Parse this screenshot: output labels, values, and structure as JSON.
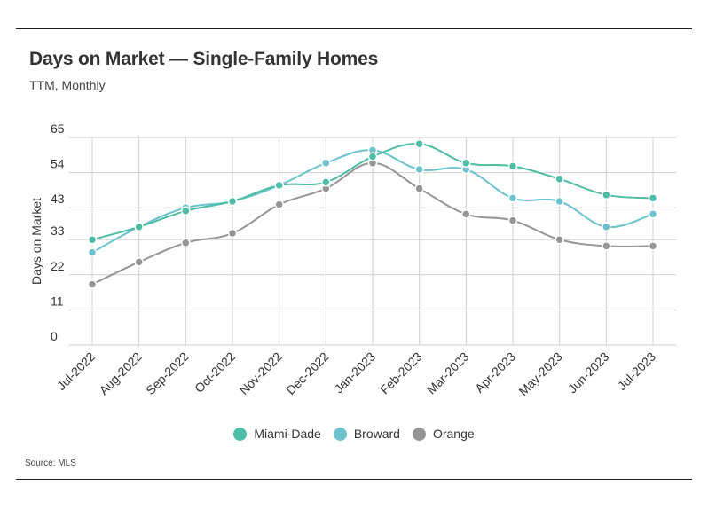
{
  "chart_data": {
    "type": "line",
    "title": "Days on Market — Single-Family Homes",
    "subtitle": "TTM, Monthly",
    "ylabel": "Days on Market",
    "xlabel": "",
    "source": "Source: MLS",
    "ylim": [
      0,
      65
    ],
    "yticks": [
      "0",
      "11",
      "22",
      "33",
      "43",
      "54",
      "65"
    ],
    "ytick_values": [
      0,
      11,
      22,
      33,
      43,
      54,
      65
    ],
    "categories": [
      "Jul-2022",
      "Aug-2022",
      "Sep-2022",
      "Oct-2022",
      "Nov-2022",
      "Dec-2022",
      "Jan-2023",
      "Feb-2023",
      "Mar-2023",
      "Apr-2023",
      "May-2023",
      "Jun-2023",
      "Jul-2023"
    ],
    "grid": true,
    "legend_position": "bottom",
    "series": [
      {
        "name": "Miami-Dade",
        "color": "#4dbda6",
        "values": [
          33,
          37,
          42,
          45,
          50,
          51,
          59,
          63,
          57,
          56,
          52,
          47,
          46
        ]
      },
      {
        "name": "Broward",
        "color": "#6cc3cc",
        "values": [
          29,
          37,
          43,
          45,
          50,
          57,
          61,
          55,
          55,
          46,
          45,
          37,
          41
        ]
      },
      {
        "name": "Orange",
        "color": "#959595",
        "values": [
          19,
          26,
          32,
          35,
          44,
          49,
          57,
          49,
          41,
          39,
          33,
          31,
          31
        ]
      }
    ]
  }
}
